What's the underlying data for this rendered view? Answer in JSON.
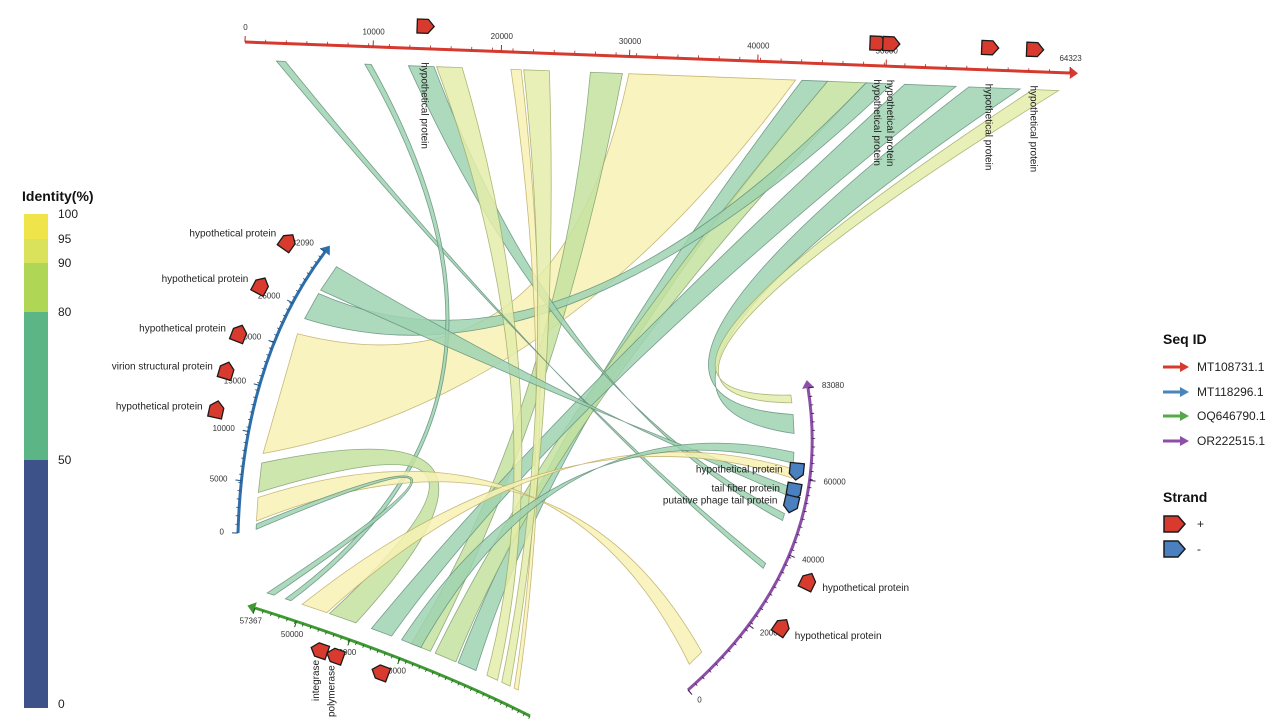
{
  "chart_data": {
    "type": "diagram-circos",
    "title": "",
    "identity_legend": {
      "title": "Identity(%)",
      "bins": [
        {
          "from": 95,
          "to": 100,
          "color": "#efe44a"
        },
        {
          "from": 90,
          "to": 95,
          "color": "#d9e25a"
        },
        {
          "from": 80,
          "to": 90,
          "color": "#b0d655"
        },
        {
          "from": 50,
          "to": 80,
          "color": "#5bb585"
        },
        {
          "from": 0,
          "to": 50,
          "color": "#3e528a"
        }
      ],
      "tick_labels": [
        "100",
        "95",
        "90",
        "80",
        "50",
        "0"
      ]
    },
    "seq_legend": {
      "title": "Seq ID",
      "items": [
        {
          "id": "MT108731.1",
          "color": "#d63a2f"
        },
        {
          "id": "MT118296.1",
          "color": "#4a86be"
        },
        {
          "id": "OQ646790.1",
          "color": "#56a84a"
        },
        {
          "id": "OR222515.1",
          "color": "#8c4fa8"
        }
      ]
    },
    "strand_legend": {
      "title": "Strand",
      "items": [
        {
          "label": "+",
          "color": "#d83a2e"
        },
        {
          "label": "-",
          "color": "#4a80c0"
        }
      ]
    },
    "sequences": [
      {
        "id": "MT108731.1",
        "length": 64323,
        "end_label": "64323",
        "ticks": [
          0,
          10000,
          20000,
          30000,
          40000,
          50000
        ],
        "tick_labels": [
          "0",
          "10000",
          "20000",
          "30000",
          "40000",
          "50000"
        ]
      },
      {
        "id": "MT118296.1",
        "length": 32090,
        "end_label": "32090",
        "ticks": [
          0,
          5000,
          10000,
          15000,
          20000,
          25000
        ],
        "tick_labels": [
          "0",
          "5000",
          "10000",
          "15000",
          "20000",
          "25000"
        ]
      },
      {
        "id": "OQ646790.1",
        "length": 57367,
        "end_label": "57367",
        "ticks": [
          30000,
          40000,
          50000
        ],
        "tick_labels": [
          "30000",
          "40000",
          "50000"
        ]
      },
      {
        "id": "OR222515.1",
        "length": 83080,
        "end_label": "83080",
        "ticks": [
          0,
          20000,
          40000,
          60000
        ],
        "tick_labels": [
          "0",
          "20000",
          "40000",
          "60000"
        ]
      }
    ],
    "genes": [
      {
        "seq": 0,
        "pos": 14000,
        "strand": "+",
        "label": "hypothetical protein"
      },
      {
        "seq": 0,
        "pos": 49300,
        "strand": "+",
        "label": "hypothetical protein"
      },
      {
        "seq": 0,
        "pos": 50300,
        "strand": "+",
        "label": "hypothetical protein"
      },
      {
        "seq": 0,
        "pos": 58000,
        "strand": "+",
        "label": "hypothetical protein"
      },
      {
        "seq": 0,
        "pos": 61500,
        "strand": "+",
        "label": "hypothetical protein"
      },
      {
        "seq": 1,
        "pos": 11500,
        "strand": "+",
        "label": "hypothetical protein"
      },
      {
        "seq": 1,
        "pos": 15500,
        "strand": "+",
        "label": "virion structural protein"
      },
      {
        "seq": 1,
        "pos": 19500,
        "strand": "+",
        "label": "hypothetical protein"
      },
      {
        "seq": 1,
        "pos": 25000,
        "strand": "+",
        "label": "hypothetical protein"
      },
      {
        "seq": 1,
        "pos": 30500,
        "strand": "+",
        "label": "hypothetical protein"
      },
      {
        "seq": 2,
        "pos": 44500,
        "strand": "+",
        "label": "integrase"
      },
      {
        "seq": 2,
        "pos": 41500,
        "strand": "+",
        "label": "polymerase"
      },
      {
        "seq": 2,
        "pos": 32500,
        "strand": "+",
        "label": ""
      },
      {
        "seq": 3,
        "pos": 62000,
        "strand": "-",
        "label": "hypothetical protein"
      },
      {
        "seq": 3,
        "pos": 56500,
        "strand": "-",
        "label": "tail fiber protein"
      },
      {
        "seq": 3,
        "pos": 53000,
        "strand": "-",
        "label": "putative phage tail protein"
      },
      {
        "seq": 3,
        "pos": 36000,
        "strand": "+",
        "label": "hypothetical protein"
      },
      {
        "seq": 3,
        "pos": 24000,
        "strand": "+",
        "label": "hypothetical protein"
      }
    ],
    "links": [
      {
        "a": 0,
        "a_range": [
          30000,
          43000
        ],
        "b": 1,
        "b_range": [
          8000,
          22000
        ],
        "identity": 98
      },
      {
        "a": 0,
        "a_range": [
          27000,
          29500
        ],
        "b": 2,
        "b_range": [
          25000,
          29000
        ],
        "identity": 85
      },
      {
        "a": 0,
        "a_range": [
          43500,
          45500
        ],
        "b": 2,
        "b_range": [
          15000,
          19000
        ],
        "identity": 75
      },
      {
        "a": 0,
        "a_range": [
          45500,
          48500
        ],
        "b": 2,
        "b_range": [
          19500,
          24000
        ],
        "identity": 82
      },
      {
        "a": 0,
        "a_range": [
          48500,
          50500
        ],
        "b": 1,
        "b_range": [
          24000,
          27500
        ],
        "identity": 72
      },
      {
        "a": 0,
        "a_range": [
          51500,
          55500
        ],
        "b": 2,
        "b_range": [
          33000,
          37000
        ],
        "identity": 70
      },
      {
        "a": 0,
        "a_range": [
          56500,
          60500
        ],
        "b": 3,
        "b_range": [
          72000,
          77000
        ],
        "identity": 70
      },
      {
        "a": 0,
        "a_range": [
          61500,
          63500
        ],
        "b": 3,
        "b_range": [
          80000,
          82000
        ],
        "identity": 92
      },
      {
        "a": 0,
        "a_range": [
          12800,
          14800
        ],
        "b": 3,
        "b_range": [
          48000,
          50000
        ],
        "identity": 70
      },
      {
        "a": 0,
        "a_range": [
          15000,
          17000
        ],
        "b": 2,
        "b_range": [
          10000,
          12500
        ],
        "identity": 92
      },
      {
        "a": 0,
        "a_range": [
          20800,
          21600
        ],
        "b": 2,
        "b_range": [
          5000,
          6000
        ],
        "identity": 96
      },
      {
        "a": 0,
        "a_range": [
          21800,
          23800
        ],
        "b": 2,
        "b_range": [
          7000,
          9000
        ],
        "identity": 93
      },
      {
        "a": 0,
        "a_range": [
          2500,
          3200
        ],
        "b": 3,
        "b_range": [
          34000,
          35500
        ],
        "identity": 70
      },
      {
        "a": 0,
        "a_range": [
          9400,
          9900
        ],
        "b": 2,
        "b_range": [
          52000,
          53000
        ],
        "identity": 70
      },
      {
        "a": 1,
        "a_range": [
          28000,
          31500
        ],
        "b": 3,
        "b_range": [
          55000,
          57500
        ],
        "identity": 75
      },
      {
        "a": 1,
        "a_range": [
          4000,
          7000
        ],
        "b": 2,
        "b_range": [
          40000,
          45000
        ],
        "identity": 85
      },
      {
        "a": 1,
        "a_range": [
          1200,
          3500
        ],
        "b": 3,
        "b_range": [
          4000,
          8000
        ],
        "identity": 96
      },
      {
        "a": 1,
        "a_range": [
          400,
          900
        ],
        "b": 2,
        "b_range": [
          55000,
          56200
        ],
        "identity": 70
      },
      {
        "a": 2,
        "a_range": [
          45500,
          50000
        ],
        "b": 3,
        "b_range": [
          60000,
          62500
        ],
        "identity": 95
      },
      {
        "a": 2,
        "a_range": [
          27000,
          31000
        ],
        "b": 3,
        "b_range": [
          64000,
          67000
        ],
        "identity": 75
      }
    ]
  }
}
